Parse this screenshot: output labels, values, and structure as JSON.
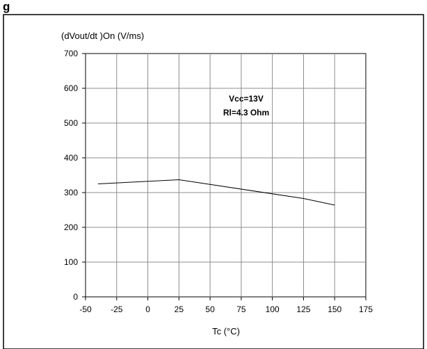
{
  "figure": {
    "title": "g"
  },
  "chart_data": {
    "type": "line",
    "title": "",
    "xlabel": "Tc (°C)",
    "ylabel": "(dVout/dt )On (V/ms)",
    "xlim": [
      -50,
      175
    ],
    "ylim": [
      0,
      700
    ],
    "x_ticks": [
      -50,
      -25,
      0,
      25,
      50,
      75,
      100,
      125,
      150,
      175
    ],
    "y_ticks": [
      0,
      100,
      200,
      300,
      400,
      500,
      600,
      700
    ],
    "grid": true,
    "annotations": [
      "Vcc=13V",
      "Rl=4.3 Ohm"
    ],
    "series": [
      {
        "x": [
          -40,
          25,
          125,
          150
        ],
        "y": [
          325,
          337,
          283,
          264
        ]
      }
    ]
  }
}
